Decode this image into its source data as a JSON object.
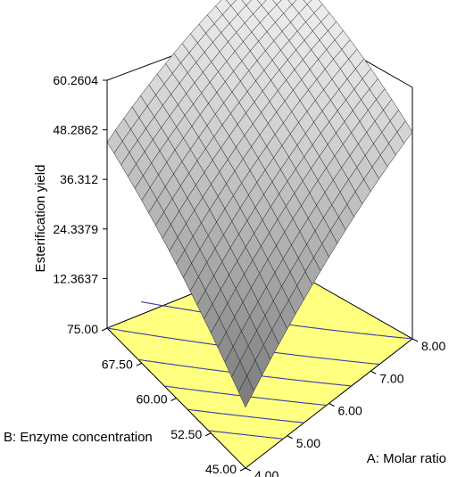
{
  "chart_data": {
    "type": "surface3d",
    "title": "",
    "zlabel": "Esterification yield",
    "xlabel": "A: Molar ratio",
    "ylabel": "B: Enzyme concentration",
    "z_ticks": [
      "12.3637",
      "24.3379",
      "36.312",
      "48.2862",
      "60.2604"
    ],
    "x_ticks": [
      "4.00",
      "5.00",
      "6.00",
      "7.00",
      "8.00"
    ],
    "y_ticks": [
      "45.00",
      "52.50",
      "60.00",
      "67.50",
      "75.00"
    ],
    "xlim": [
      4,
      8
    ],
    "ylim": [
      45,
      75
    ],
    "zlim": [
      0.3895,
      60.2604
    ],
    "surface_approx": {
      "corner_A4_B45": 15,
      "corner_A8_B45": 50,
      "corner_A4_B75": 45,
      "corner_A8_B75": 60
    },
    "colors": {
      "floor": "#ffff80",
      "contour": "#3c3ca8",
      "surface_light": "#f2f2f2",
      "surface_dark": "#7a7a7a"
    },
    "grid": false
  }
}
